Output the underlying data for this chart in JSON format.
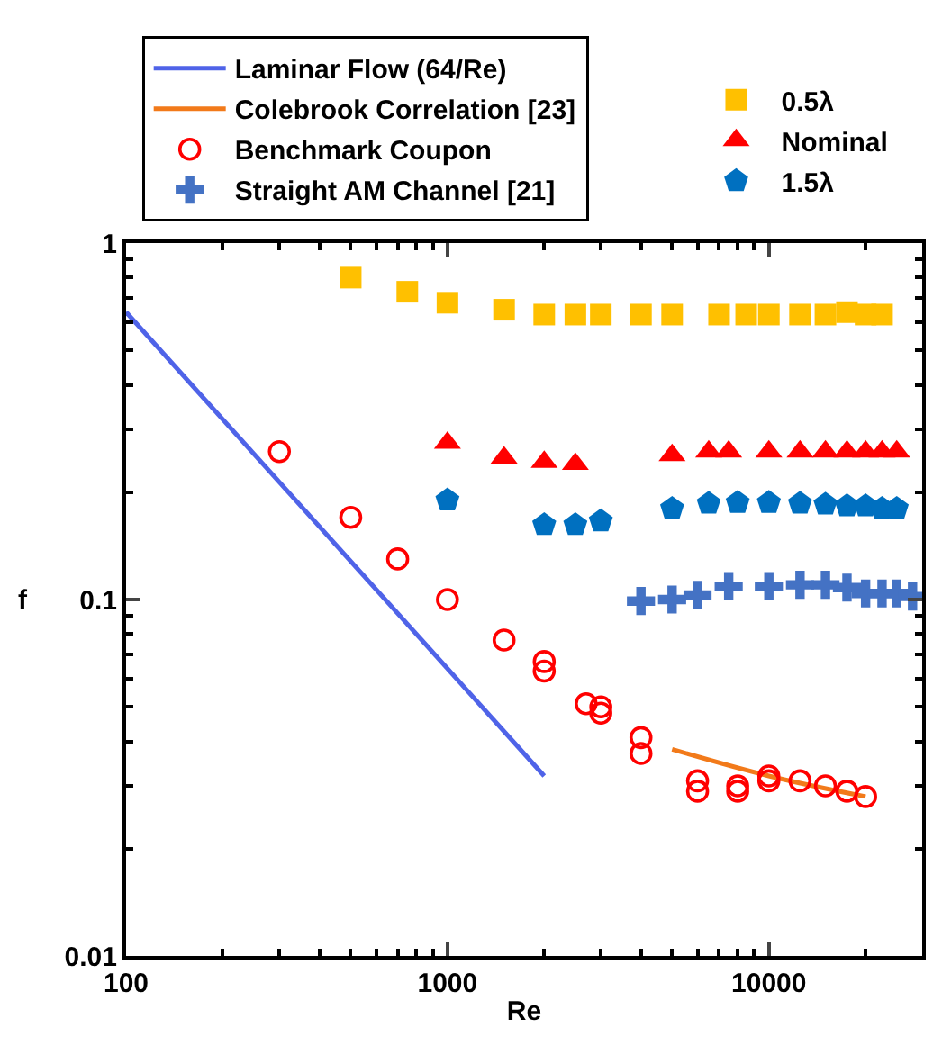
{
  "chart_data": {
    "type": "scatter",
    "xlabel": "Re",
    "ylabel": "f",
    "log": "xy",
    "xlim": [
      100,
      30000
    ],
    "xticks": [
      100,
      1000,
      10000
    ],
    "ylim": [
      0.01,
      1
    ],
    "yticks": [
      0.01,
      0.1,
      1
    ],
    "legend": "top",
    "series": [
      {
        "name": "Laminar Flow (64/Re)",
        "type": "line",
        "color": "#4f63e8",
        "marker": "none",
        "line_style": "solid",
        "x": [
          100,
          2000
        ],
        "values": [
          0.64,
          0.032
        ]
      },
      {
        "name": "Colebrook Correlation [23]",
        "type": "line",
        "color": "#f27a1a",
        "marker": "none",
        "line_style": "solid",
        "x": [
          5000,
          10000,
          20000
        ],
        "values": [
          0.038,
          0.032,
          0.028
        ]
      },
      {
        "name": "Benchmark Coupon",
        "color": "#ff0000",
        "marker": "circle-open",
        "x": [
          300,
          500,
          700,
          1000,
          1500,
          2000,
          2000,
          2700,
          3000,
          3000,
          4000,
          4000,
          6000,
          6000,
          8000,
          8000,
          10000,
          10000,
          12500,
          15000,
          17500,
          20000
        ],
        "values": [
          0.26,
          0.17,
          0.13,
          0.1,
          0.077,
          0.067,
          0.063,
          0.051,
          0.05,
          0.048,
          0.041,
          0.037,
          0.031,
          0.029,
          0.03,
          0.029,
          0.032,
          0.031,
          0.031,
          0.03,
          0.029,
          0.028
        ]
      },
      {
        "name": "Straight AM Channel [21]",
        "color": "#4472c4",
        "marker": "cross",
        "x": [
          4000,
          5000,
          6000,
          7500,
          10000,
          12500,
          15000,
          17500,
          20000,
          22500,
          25000,
          28000
        ],
        "values": [
          0.099,
          0.1,
          0.103,
          0.109,
          0.109,
          0.11,
          0.11,
          0.108,
          0.104,
          0.104,
          0.104,
          0.102
        ]
      },
      {
        "name": "0.5λ",
        "color": "#ffc000",
        "marker": "square",
        "x": [
          500,
          750,
          1000,
          1500,
          2000,
          2500,
          3000,
          4000,
          5000,
          7000,
          8500,
          10000,
          12500,
          15000,
          17500,
          20000,
          22500
        ],
        "values": [
          0.8,
          0.73,
          0.68,
          0.65,
          0.63,
          0.63,
          0.63,
          0.63,
          0.63,
          0.63,
          0.63,
          0.63,
          0.63,
          0.63,
          0.64,
          0.63,
          0.63
        ]
      },
      {
        "name": "Nominal",
        "color": "#ff0000",
        "marker": "triangle",
        "x": [
          1000,
          1500,
          2000,
          2500,
          5000,
          6500,
          7500,
          10000,
          12500,
          15000,
          17500,
          20000,
          22500,
          25000
        ],
        "values": [
          0.275,
          0.25,
          0.243,
          0.24,
          0.254,
          0.26,
          0.26,
          0.26,
          0.26,
          0.26,
          0.26,
          0.26,
          0.26,
          0.26
        ]
      },
      {
        "name": "1.5λ",
        "color": "#0070c0",
        "x": [
          1000,
          2000,
          2500,
          3000,
          5000,
          6500,
          8000,
          10000,
          12500,
          15000,
          17500,
          20000,
          22500,
          25000
        ],
        "values": [
          0.19,
          0.162,
          0.162,
          0.166,
          0.18,
          0.186,
          0.187,
          0.187,
          0.186,
          0.185,
          0.183,
          0.183,
          0.18,
          0.18
        ]
      }
    ]
  }
}
